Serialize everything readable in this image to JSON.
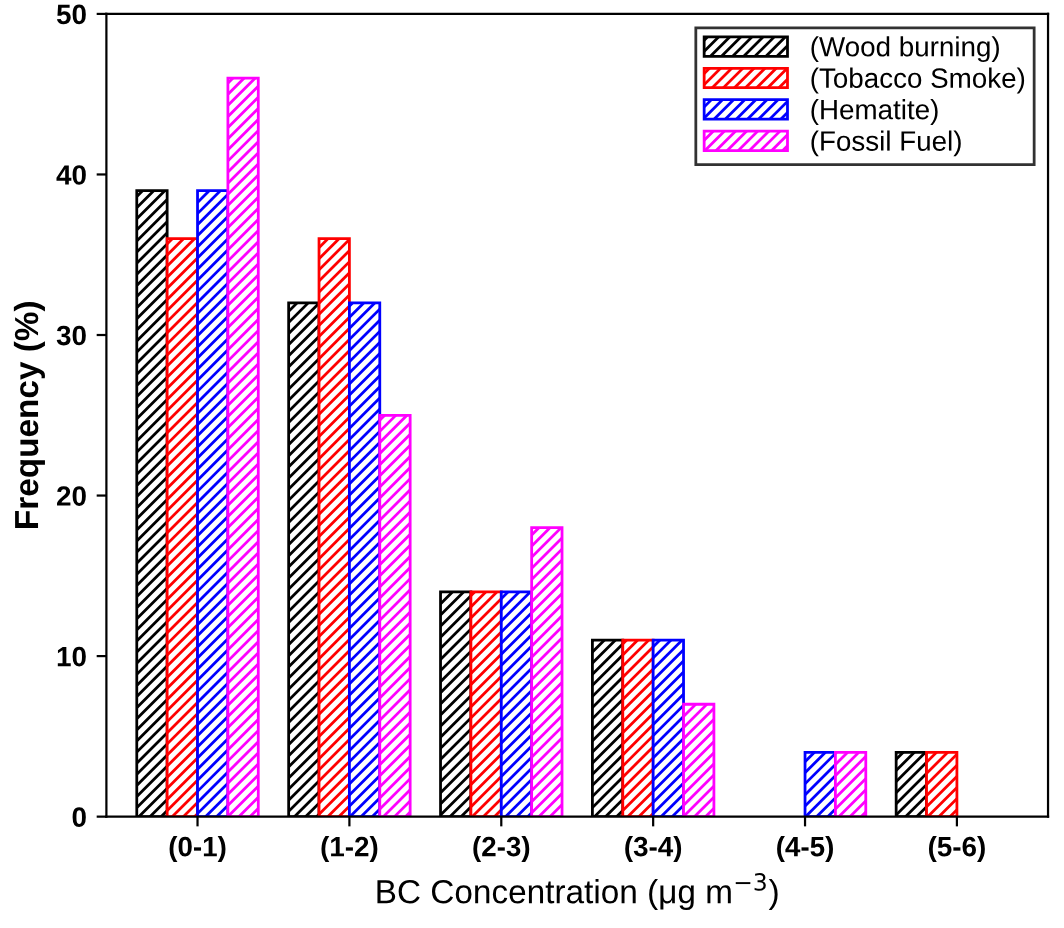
{
  "chart_data": {
    "type": "bar",
    "xlabel": "BC Concentration (μg m$^{−3}$)",
    "ylabel": "Frequency (%)",
    "categories": [
      "(0-1)",
      "(1-2)",
      "(2-3)",
      "(3-4)",
      "(4-5)",
      "(5-6)"
    ],
    "series": [
      {
        "name": "(Wood burning)",
        "color": "#000000",
        "values": [
          39,
          32,
          14,
          11,
          null,
          4
        ]
      },
      {
        "name": "(Tobacco Smoke)",
        "color": "#ff0000",
        "values": [
          36,
          36,
          14,
          11,
          null,
          4
        ]
      },
      {
        "name": "(Hematite)",
        "color": "#0000ff",
        "values": [
          39,
          32,
          14,
          11,
          4,
          null
        ]
      },
      {
        "name": "(Fossil Fuel)",
        "color": "#ff00ff",
        "values": [
          46,
          25,
          18,
          7,
          4,
          null
        ]
      }
    ],
    "ylim": [
      0,
      50
    ],
    "yticks": [
      0,
      10,
      20,
      30,
      40,
      50
    ],
    "legend": "top right",
    "grid": false
  }
}
